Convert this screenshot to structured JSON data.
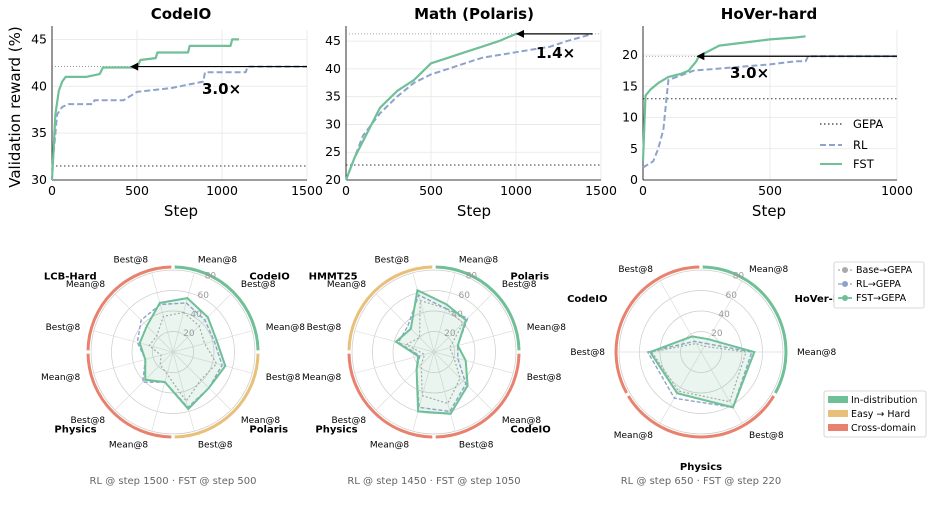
{
  "line_charts": [
    {
      "title": "CodeIO",
      "xlabel": "Step",
      "ylabel": "Validation reward (%)",
      "xticks": [
        "0",
        "500",
        "1000",
        "1500"
      ],
      "yticks": [
        "30",
        "35",
        "40",
        "45"
      ],
      "annotation": "3.0×",
      "chart_data": {
        "type": "line",
        "xlim": [
          0,
          1500
        ],
        "ylim": [
          30,
          46
        ],
        "ref_level": 42.1,
        "arrow": {
          "from_x": 1500,
          "to_x": 460,
          "y": 42.1
        },
        "series": [
          {
            "name": "GEPA",
            "constant": 31.5
          },
          {
            "name": "RL",
            "x": [
              0,
              30,
              60,
              100,
              240,
              250,
              420,
              500,
              700,
              890,
              900,
              1140,
              1150,
              1500
            ],
            "y": [
              31,
              37,
              37.8,
              38.1,
              38.1,
              38.5,
              38.5,
              39.4,
              39.8,
              40.5,
              41.5,
              41.5,
              42.1,
              42.1
            ]
          },
          {
            "name": "FST",
            "x": [
              0,
              20,
              40,
              60,
              80,
              100,
              200,
              280,
              300,
              500,
              520,
              610,
              620,
              800,
              810,
              1050,
              1060,
              1100
            ],
            "y": [
              30,
              37,
              39.5,
              40.5,
              41,
              41,
              41,
              41.3,
              42,
              42,
              42.8,
              43,
              43.6,
              43.6,
              44.3,
              44.3,
              45,
              45
            ]
          }
        ]
      }
    },
    {
      "title": "Math (Polaris)",
      "xlabel": "Step",
      "ylabel": "",
      "xticks": [
        "0",
        "500",
        "1000",
        "1500"
      ],
      "yticks": [
        "20",
        "25",
        "30",
        "35",
        "40",
        "45"
      ],
      "annotation": "1.4×",
      "chart_data": {
        "type": "line",
        "xlim": [
          0,
          1500
        ],
        "ylim": [
          20,
          47
        ],
        "ref_level": 46.3,
        "arrow": {
          "from_x": 1450,
          "to_x": 1000,
          "y": 46.3
        },
        "series": [
          {
            "name": "GEPA",
            "constant": 22.7
          },
          {
            "name": "RL",
            "x": [
              0,
              50,
              100,
              200,
              300,
              400,
              500,
              600,
              700,
              800,
              900,
              1000,
              1100,
              1200,
              1300,
              1450
            ],
            "y": [
              20,
              24,
              28,
              32,
              35,
              37.5,
              39,
              40,
              41,
              42,
              42.5,
              43,
              43.5,
              44,
              45,
              46.3
            ]
          },
          {
            "name": "FST",
            "x": [
              0,
              50,
              100,
              200,
              300,
              400,
              500,
              600,
              700,
              800,
              900,
              1000,
              1050
            ],
            "y": [
              20,
              24,
              27,
              33,
              36,
              38,
              41,
              42,
              43,
              44,
              45,
              46.3,
              46.3
            ]
          }
        ]
      }
    },
    {
      "title": "HoVer-hard",
      "xlabel": "Step",
      "ylabel": "",
      "xticks": [
        "0",
        "500",
        "1000"
      ],
      "yticks": [
        "0",
        "5",
        "10",
        "15",
        "20"
      ],
      "annotation": "3.0×",
      "chart_data": {
        "type": "line",
        "xlim": [
          0,
          1000
        ],
        "ylim": [
          0,
          24
        ],
        "ref_level": 19.8,
        "arrow": {
          "from_x": 1000,
          "to_x": 210,
          "y": 19.8
        },
        "series": [
          {
            "name": "GEPA",
            "constant": 13
          },
          {
            "name": "RL",
            "x": [
              0,
              40,
              60,
              80,
              100,
              200,
              350,
              500,
              600,
              640,
              650,
              1000
            ],
            "y": [
              2,
              3,
              5,
              8,
              16,
              17.5,
              18,
              18.5,
              19,
              19,
              19.8,
              19.8
            ]
          },
          {
            "name": "FST",
            "x": [
              0,
              10,
              30,
              60,
              100,
              150,
              180,
              210,
              220,
              300,
              400,
              500,
              600,
              640
            ],
            "y": [
              3,
              13.5,
              14.5,
              15.5,
              16.5,
              17,
              17.5,
              19,
              19.8,
              21.5,
              22,
              22.5,
              22.8,
              23
            ]
          }
        ]
      }
    }
  ],
  "legend": [
    {
      "label": "GEPA",
      "color": "#333333",
      "style": "dotted"
    },
    {
      "label": "RL",
      "color": "#8ea3cc",
      "style": "dashed"
    },
    {
      "label": "FST",
      "color": "#6fbf97",
      "style": "solid"
    }
  ],
  "radar_charts": [
    {
      "categories": [
        {
          "name": "CodeIO",
          "group": "In-distribution"
        },
        {
          "name": "Polaris",
          "group": "Easy → Hard"
        },
        {
          "name": "Physics",
          "group": "Cross-domain"
        },
        {
          "name": "LCB-Hard",
          "group": "Cross-domain"
        }
      ],
      "axes": [
        {
          "label": "Mean@8",
          "b": 50,
          "r": 62,
          "f": 68
        },
        {
          "label": "Best@8",
          "b": 45,
          "r": 55,
          "f": 60
        },
        {
          "label": "Mean@8",
          "b": 40,
          "r": 52,
          "f": 55
        },
        {
          "label": "Best@8",
          "b": 55,
          "r": 62,
          "f": 66
        },
        {
          "label": "Mean@8",
          "b": 48,
          "r": 62,
          "f": 62
        },
        {
          "label": "Best@8",
          "b": 62,
          "r": 70,
          "f": 72
        },
        {
          "label": "Mean@8",
          "b": 28,
          "r": 38,
          "f": 38
        },
        {
          "label": "Best@8",
          "b": 22,
          "r": 52,
          "f": 48
        },
        {
          "label": "Mean@8",
          "b": 15,
          "r": 35,
          "f": 35
        },
        {
          "label": "Best@8",
          "b": 30,
          "r": 45,
          "f": 42
        },
        {
          "label": "Mean@8",
          "b": 28,
          "r": 55,
          "f": 45
        },
        {
          "label": "Best@8",
          "b": 45,
          "r": 60,
          "f": 62
        }
      ],
      "caption": "RL @ step 1500 · FST @ step 500"
    },
    {
      "categories": [
        {
          "name": "Polaris",
          "group": "In-distribution"
        },
        {
          "name": "CodeIO",
          "group": "Cross-domain"
        },
        {
          "name": "Physics",
          "group": "Cross-domain"
        },
        {
          "name": "HMMT25",
          "group": "Easy → Hard"
        }
      ],
      "axes": [
        {
          "label": "Mean@8",
          "b": 55,
          "r": 55,
          "f": 60
        },
        {
          "label": "Best@8",
          "b": 50,
          "r": 58,
          "f": 55
        },
        {
          "label": "Mean@8",
          "b": 20,
          "r": 30,
          "f": 30
        },
        {
          "label": "Best@8",
          "b": 25,
          "r": 30,
          "f": 40
        },
        {
          "label": "Mean@8",
          "b": 45,
          "r": 55,
          "f": 58
        },
        {
          "label": "Best@8",
          "b": 65,
          "r": 75,
          "f": 78
        },
        {
          "label": "Mean@8",
          "b": 55,
          "r": 70,
          "f": 75
        },
        {
          "label": "Best@8",
          "b": 22,
          "r": 30,
          "f": 30
        },
        {
          "label": "Mean@8",
          "b": 12,
          "r": 18,
          "f": 20
        },
        {
          "label": "Best@8",
          "b": 35,
          "r": 45,
          "f": 48
        },
        {
          "label": "Mean@8",
          "b": 25,
          "r": 45,
          "f": 40
        },
        {
          "label": "Best@8",
          "b": 65,
          "r": 72,
          "f": 78
        }
      ],
      "caption": "RL @ step 1450 · FST @ step 1050"
    },
    {
      "categories": [
        {
          "name": "HoVer-hard",
          "group": "In-distribution"
        },
        {
          "name": "Physics",
          "group": "Cross-domain"
        },
        {
          "name": "CodeIO",
          "group": "Cross-domain"
        }
      ],
      "axes": [
        {
          "label": "Mean@8",
          "b": 8,
          "r": 12,
          "f": 18
        },
        {
          "label": "Mean@8",
          "b": 55,
          "r": 62,
          "f": 65
        },
        {
          "label": "Best@8",
          "b": 70,
          "r": 78,
          "f": 78
        },
        {
          "label": "Mean@8",
          "b": 55,
          "r": 65,
          "f": 58
        },
        {
          "label": "Best@8",
          "b": 60,
          "r": 65,
          "f": 62
        },
        {
          "label": "Best@8",
          "b": 12,
          "r": 15,
          "f": 22
        }
      ],
      "caption": "RL @ step 650 · FST @ step 220"
    }
  ],
  "radar_ticks": [
    "20",
    "40",
    "60",
    "80"
  ],
  "radar_legend": [
    {
      "label": "Base→GEPA",
      "color": "#aaaaaa"
    },
    {
      "label": "RL→GEPA",
      "color": "#8ea3cc"
    },
    {
      "label": "FST→GEPA",
      "color": "#6fbf97"
    }
  ],
  "group_legend": [
    {
      "label": "In-distribution",
      "color": "#6fbf97"
    },
    {
      "label": "Easy → Hard",
      "color": "#e8c07a"
    },
    {
      "label": "Cross-domain",
      "color": "#e8826e"
    }
  ]
}
